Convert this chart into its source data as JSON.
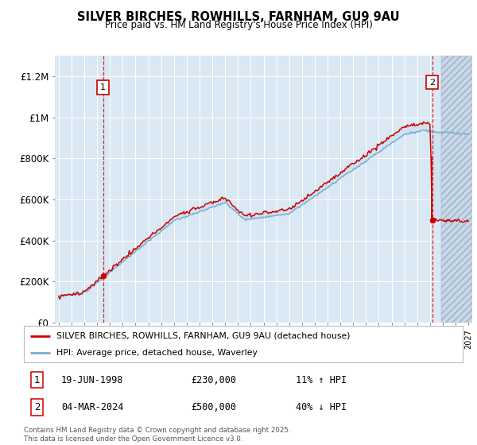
{
  "title": "SILVER BIRCHES, ROWHILLS, FARNHAM, GU9 9AU",
  "subtitle": "Price paid vs. HM Land Registry's House Price Index (HPI)",
  "legend_entries": [
    "SILVER BIRCHES, ROWHILLS, FARNHAM, GU9 9AU (detached house)",
    "HPI: Average price, detached house, Waverley"
  ],
  "annotation1": {
    "label": "1",
    "date": "19-JUN-1998",
    "price": "£230,000",
    "hpi": "11% ↑ HPI",
    "x_year": 1998.47
  },
  "annotation2": {
    "label": "2",
    "date": "04-MAR-2024",
    "price": "£500,000",
    "hpi": "40% ↓ HPI",
    "x_year": 2024.17
  },
  "footer": "Contains HM Land Registry data © Crown copyright and database right 2025.\nThis data is licensed under the Open Government Licence v3.0.",
  "line1_color": "#cc0000",
  "line2_color": "#7aadcf",
  "fill_color": "#c8dff0",
  "bg_color": "#dae8f4",
  "ylim": [
    0,
    1300000
  ],
  "xlim_start": 1994.7,
  "xlim_end": 2027.3,
  "yticks": [
    0,
    200000,
    400000,
    600000,
    800000,
    1000000,
    1200000
  ],
  "ytick_labels": [
    "£0",
    "£200K",
    "£400K",
    "£600K",
    "£800K",
    "£1M",
    "£1.2M"
  ],
  "purchase1_year": 1998.47,
  "purchase1_price": 230000,
  "purchase2_year": 2024.17,
  "purchase2_price": 500000
}
